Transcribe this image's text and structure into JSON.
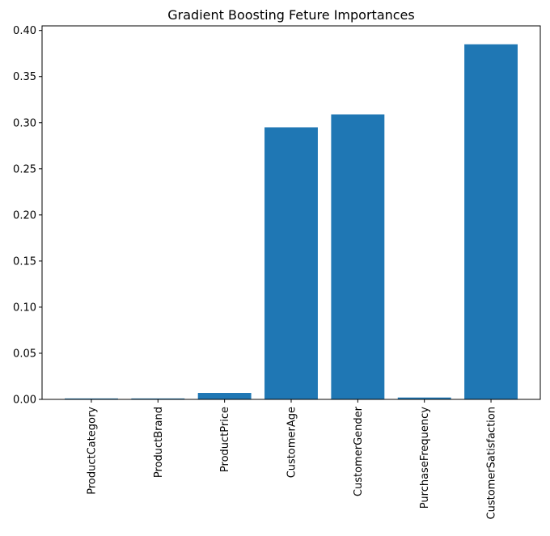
{
  "chart_data": {
    "type": "bar",
    "title": "Gradient Boosting Feture Importances",
    "xlabel": "",
    "ylabel": "",
    "categories": [
      "ProductCategory",
      "ProductBrand",
      "ProductPrice",
      "CustomerAge",
      "CustomerGender",
      "PurchaseFrequency",
      "CustomerSatisfaction"
    ],
    "values": [
      0.001,
      0.001,
      0.007,
      0.295,
      0.309,
      0.002,
      0.385
    ],
    "ylim": [
      0,
      0.405
    ],
    "yticks": [
      "0.00",
      "0.05",
      "0.10",
      "0.15",
      "0.20",
      "0.25",
      "0.30",
      "0.35",
      "0.40"
    ],
    "bar_color": "#1f77b4",
    "grid": false,
    "legend": "none"
  }
}
